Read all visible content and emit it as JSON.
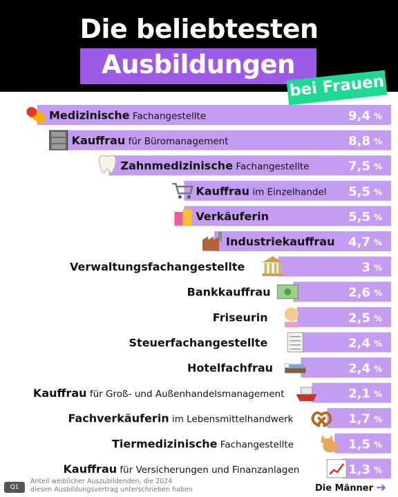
{
  "header": {
    "title_line1": "Die beliebtesten",
    "title_line2": "Ausbildungen",
    "badge": "bei Frauen"
  },
  "colors": {
    "bar": "#c49df2",
    "highlight": "#9d5ae6",
    "badge": "#1ed991",
    "header_bg": "#000000"
  },
  "chart_data": {
    "type": "bar",
    "orientation": "horizontal",
    "unit": "%",
    "categories": [
      {
        "bold": "Medizinische",
        "rest": " Fachangestellte",
        "icon": "pill-icon"
      },
      {
        "bold": "Kauffrau",
        "rest": " für Büromanagement",
        "icon": "file-cabinet-icon"
      },
      {
        "bold": "Zahnmedizinische",
        "rest": " Fachangestellte",
        "icon": "tooth-icon"
      },
      {
        "bold": "Kauffrau",
        "rest": " im Einzelhandel",
        "icon": "shopping-cart-icon"
      },
      {
        "bold": "Verkäuferin",
        "rest": "",
        "icon": "shopping-bags-icon"
      },
      {
        "bold": "Industriekauffrau",
        "rest": "",
        "icon": "factory-icon"
      },
      {
        "bold": "Verwaltungsfachangestellte",
        "rest": "",
        "icon": "classical-building-icon"
      },
      {
        "bold": "Bankkauffrau",
        "rest": "",
        "icon": "banknote-icon"
      },
      {
        "bold": "Friseurin",
        "rest": "",
        "icon": "hairdresser-icon"
      },
      {
        "bold": "Steuerfachangestellte",
        "rest": "",
        "icon": "receipt-icon"
      },
      {
        "bold": "Hotelfachfrau",
        "rest": "",
        "icon": "bed-icon"
      },
      {
        "bold": "Kauffrau",
        "rest": " für Groß- und Außenhandelsmanagement",
        "icon": "ship-icon"
      },
      {
        "bold": "Fachverkäuferin",
        "rest": " im Lebensmittelhandwerk",
        "icon": "pretzel-icon"
      },
      {
        "bold": "Tiermedizinische",
        "rest": " Fachangestellte",
        "icon": "cat-icon"
      },
      {
        "bold": "Kauffrau",
        "rest": " für Versicherungen und Finanzanlagen",
        "icon": "chart-increasing-icon"
      }
    ],
    "values": [
      9.4,
      8.8,
      7.5,
      5.5,
      5.5,
      4.7,
      3,
      2.6,
      2.5,
      2.4,
      2.4,
      2.1,
      1.7,
      1.5,
      1.3
    ],
    "value_labels": [
      "9,4",
      "8,8",
      "7,5",
      "5,5",
      "5,5",
      "4,7",
      "3",
      "2,6",
      "2,5",
      "2,4",
      "2,4",
      "2,1",
      "1,7",
      "1,5",
      "1,3"
    ],
    "xlim": [
      0,
      9.4
    ]
  },
  "footer": {
    "badge": "Q1",
    "footnote_line1": "Anteil weiblicher Auszubildenden, die 2024",
    "footnote_line2": "diesen Ausbildungsvertrag unterschrieben haben",
    "next_label": "Die Männer"
  }
}
